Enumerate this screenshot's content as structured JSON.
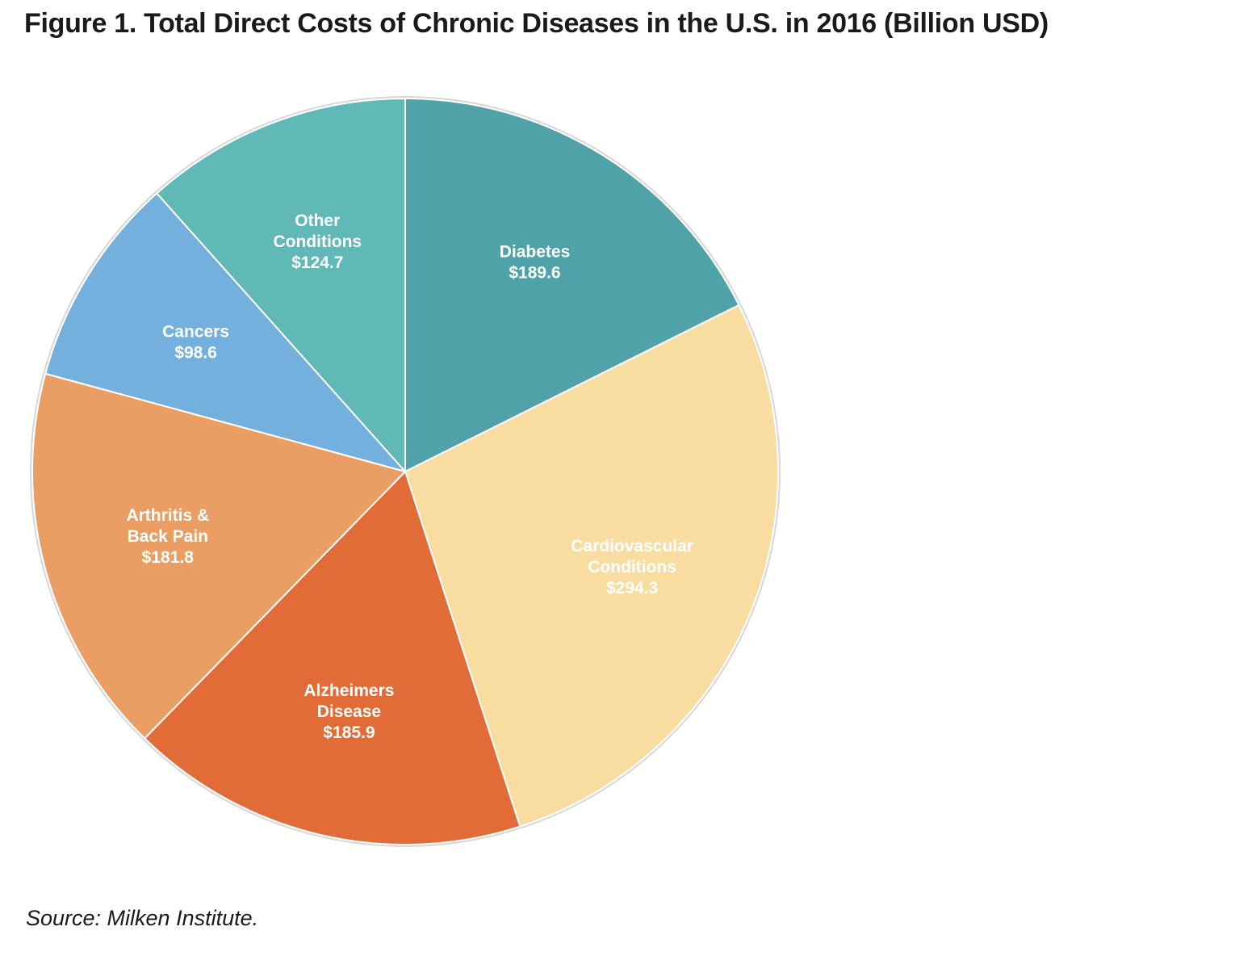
{
  "title": "Figure 1. Total Direct Costs of Chronic Diseases in the U.S. in 2016 (Billion USD)",
  "source": "Source: Milken Institute.",
  "chart_data": {
    "type": "pie",
    "title": "Figure 1. Total Direct Costs of Chronic Diseases in the U.S. in 2016 (Billion USD)",
    "units": "Billion USD",
    "start": "12 o'clock",
    "direction": "clockwise",
    "slices": [
      {
        "name": "Diabetes",
        "label_lines": [
          "Diabetes"
        ],
        "value_label": "$189.6",
        "value": 189.6,
        "color": "#4fa3a8"
      },
      {
        "name": "Cardiovascular Conditions",
        "label_lines": [
          "Cardiovascular",
          "Conditions"
        ],
        "value_label": "$294.3",
        "value": 294.3,
        "color": "#f8dca0"
      },
      {
        "name": "Alzheimers Disease",
        "label_lines": [
          "Alzheimers",
          "Disease"
        ],
        "value_label": "$185.9",
        "value": 185.9,
        "color": "#e16c38"
      },
      {
        "name": "Arthritis & Back Pain",
        "label_lines": [
          "Arthritis &",
          "Back Pain"
        ],
        "value_label": "$181.8",
        "value": 181.8,
        "color": "#ea9e63"
      },
      {
        "name": "Cancers",
        "label_lines": [
          "Cancers"
        ],
        "value_label": "$98.6",
        "value": 98.6,
        "color": "#73b0dd"
      },
      {
        "name": "Other Conditions",
        "label_lines": [
          "Other",
          "Conditions"
        ],
        "value_label": "$124.7",
        "value": 124.7,
        "color": "#60b9b7"
      }
    ]
  }
}
